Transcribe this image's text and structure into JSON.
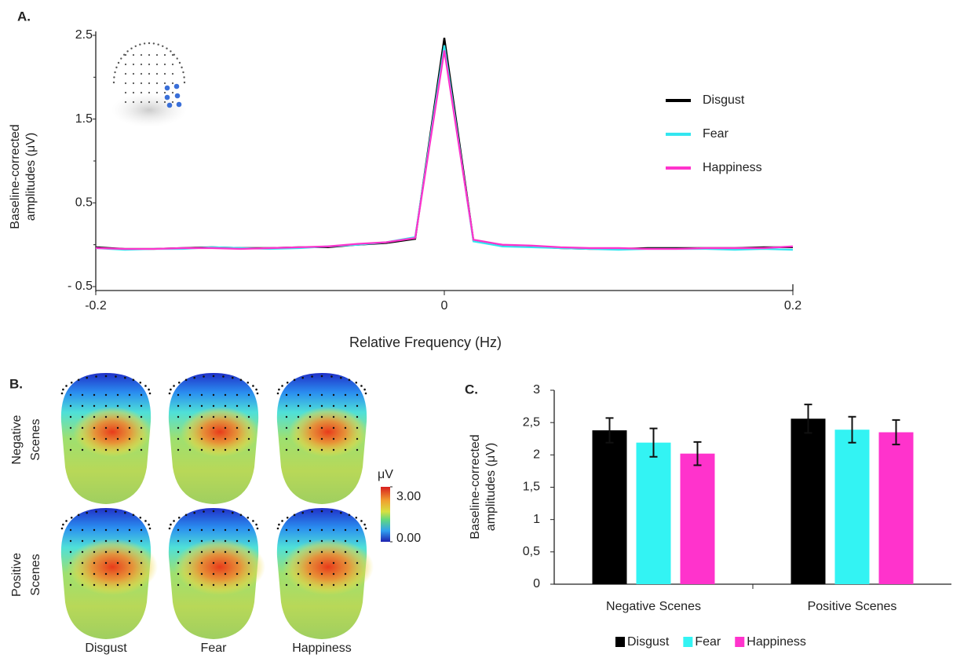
{
  "chart_data": [
    {
      "type": "line",
      "panel_label": "A.",
      "x_label": "Relative Frequency (Hz)",
      "y_label": [
        "Baseline-corrected",
        "amplitudes (μV)"
      ],
      "x": [
        -0.2,
        -0.1833,
        -0.1667,
        -0.15,
        -0.1333,
        -0.1167,
        -0.1,
        -0.0833,
        -0.0667,
        -0.05,
        -0.0333,
        -0.0167,
        0,
        0.0167,
        0.0333,
        0.05,
        0.0667,
        0.0833,
        0.1,
        0.1167,
        0.1333,
        0.15,
        0.1667,
        0.1833,
        0.2
      ],
      "series": [
        {
          "name": "Disgust",
          "color": "#000000",
          "values": [
            -0.03,
            -0.05,
            -0.05,
            -0.04,
            -0.03,
            -0.04,
            -0.04,
            -0.03,
            -0.03,
            0.0,
            0.02,
            0.07,
            2.47,
            0.05,
            -0.01,
            -0.02,
            -0.04,
            -0.05,
            -0.05,
            -0.04,
            -0.04,
            -0.04,
            -0.04,
            -0.03,
            -0.03
          ]
        },
        {
          "name": "Fear",
          "color": "#33e6f0",
          "values": [
            -0.04,
            -0.06,
            -0.05,
            -0.05,
            -0.03,
            -0.04,
            -0.05,
            -0.04,
            -0.02,
            0.0,
            0.03,
            0.09,
            2.38,
            0.04,
            -0.02,
            -0.03,
            -0.04,
            -0.05,
            -0.06,
            -0.05,
            -0.05,
            -0.05,
            -0.06,
            -0.05,
            -0.06
          ]
        },
        {
          "name": "Happiness",
          "color": "#ff33cc",
          "values": [
            -0.04,
            -0.05,
            -0.05,
            -0.04,
            -0.04,
            -0.05,
            -0.04,
            -0.03,
            -0.02,
            0.01,
            0.03,
            0.08,
            2.32,
            0.06,
            0.0,
            -0.01,
            -0.03,
            -0.04,
            -0.04,
            -0.05,
            -0.05,
            -0.04,
            -0.04,
            -0.04,
            -0.02
          ]
        }
      ],
      "xlim": [
        -0.2,
        0.2
      ],
      "xticks": [
        -0.2,
        0,
        0.2
      ],
      "ylim": [
        -0.5,
        2.5
      ],
      "yticks": [
        2.5,
        1.5,
        0.5,
        {
          "value": -0.5,
          "label": "- 0.5"
        }
      ],
      "yminor": [
        2,
        1,
        0
      ],
      "legend": "right"
    },
    {
      "type": "bar",
      "panel_label": "C.",
      "y_label": [
        "Baseline-corrected",
        "amplitudes (μV)"
      ],
      "categories": [
        "Negative Scenes",
        "Positive Scenes"
      ],
      "series": [
        {
          "name": "Disgust",
          "color": "#000000",
          "values": [
            2.38,
            2.56
          ],
          "errors": [
            0.19,
            0.22
          ]
        },
        {
          "name": "Fear",
          "color": "#33f3f3",
          "values": [
            2.19,
            2.39
          ],
          "errors": [
            0.22,
            0.2
          ]
        },
        {
          "name": "Happiness",
          "color": "#ff33cc",
          "values": [
            2.02,
            2.35
          ],
          "errors": [
            0.18,
            0.19
          ]
        }
      ],
      "ylim": [
        0,
        3
      ],
      "yticks": [
        0,
        {
          "value": 0.5,
          "label": "0,5"
        },
        1,
        {
          "value": 1.5,
          "label": "1,5"
        },
        2,
        {
          "value": 2.5,
          "label": "2,5"
        },
        3
      ],
      "legend": "bottom"
    }
  ],
  "topomaps": {
    "panel_label": "B.",
    "rows": [
      [
        "Negative",
        "Scenes"
      ],
      [
        "Positive",
        "Scenes"
      ]
    ],
    "columns": [
      "Disgust",
      "Fear",
      "Happiness"
    ],
    "colorbar": {
      "label": "μV",
      "clim": [
        0,
        3
      ],
      "ticks": [
        {
          "value": 3,
          "label": "3.00"
        },
        {
          "value": 0,
          "label": "0.00"
        }
      ]
    }
  }
}
